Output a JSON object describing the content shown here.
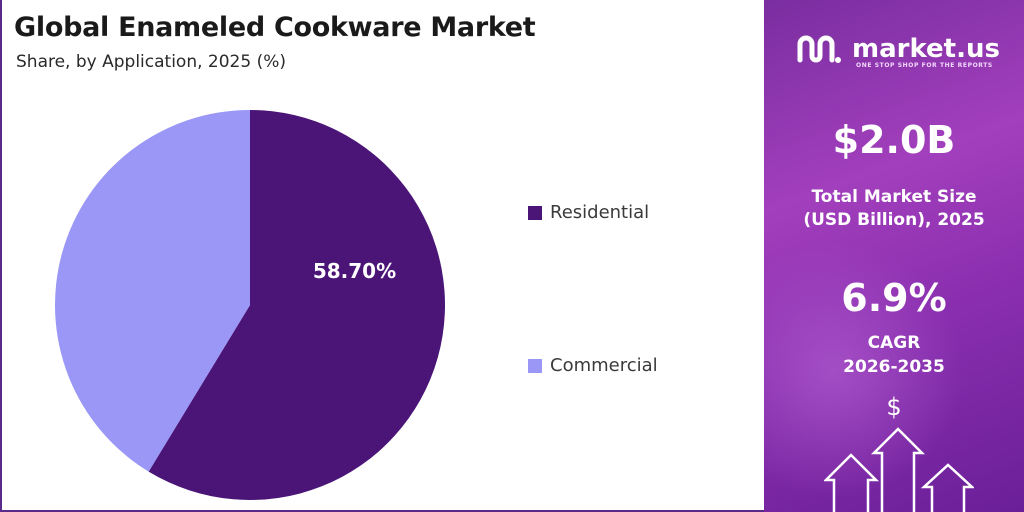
{
  "header": {
    "title": "Global Enameled Cookware Market",
    "subtitle": "Share, by Application, 2025 (%)"
  },
  "chart_data": {
    "type": "pie",
    "title": "Global Enameled Cookware Market",
    "subtitle": "Share, by Application, 2025 (%)",
    "categories": [
      "Residential",
      "Commercial"
    ],
    "values": [
      58.7,
      41.3
    ],
    "colors": [
      "#4a1577",
      "#9a97f7"
    ],
    "data_labels": [
      "58.70%",
      ""
    ],
    "legend_position": "right"
  },
  "sidebar": {
    "brand": "market.us",
    "tagline": "ONE STOP SHOP FOR THE REPORTS",
    "market_size_value": "$2.0B",
    "market_size_label_1": "Total Market Size",
    "market_size_label_2": "(USD Billion), 2025",
    "cagr_value": "6.9%",
    "cagr_label_1": "CAGR",
    "cagr_label_2": "2026-2035",
    "dollar_symbol": "$"
  }
}
